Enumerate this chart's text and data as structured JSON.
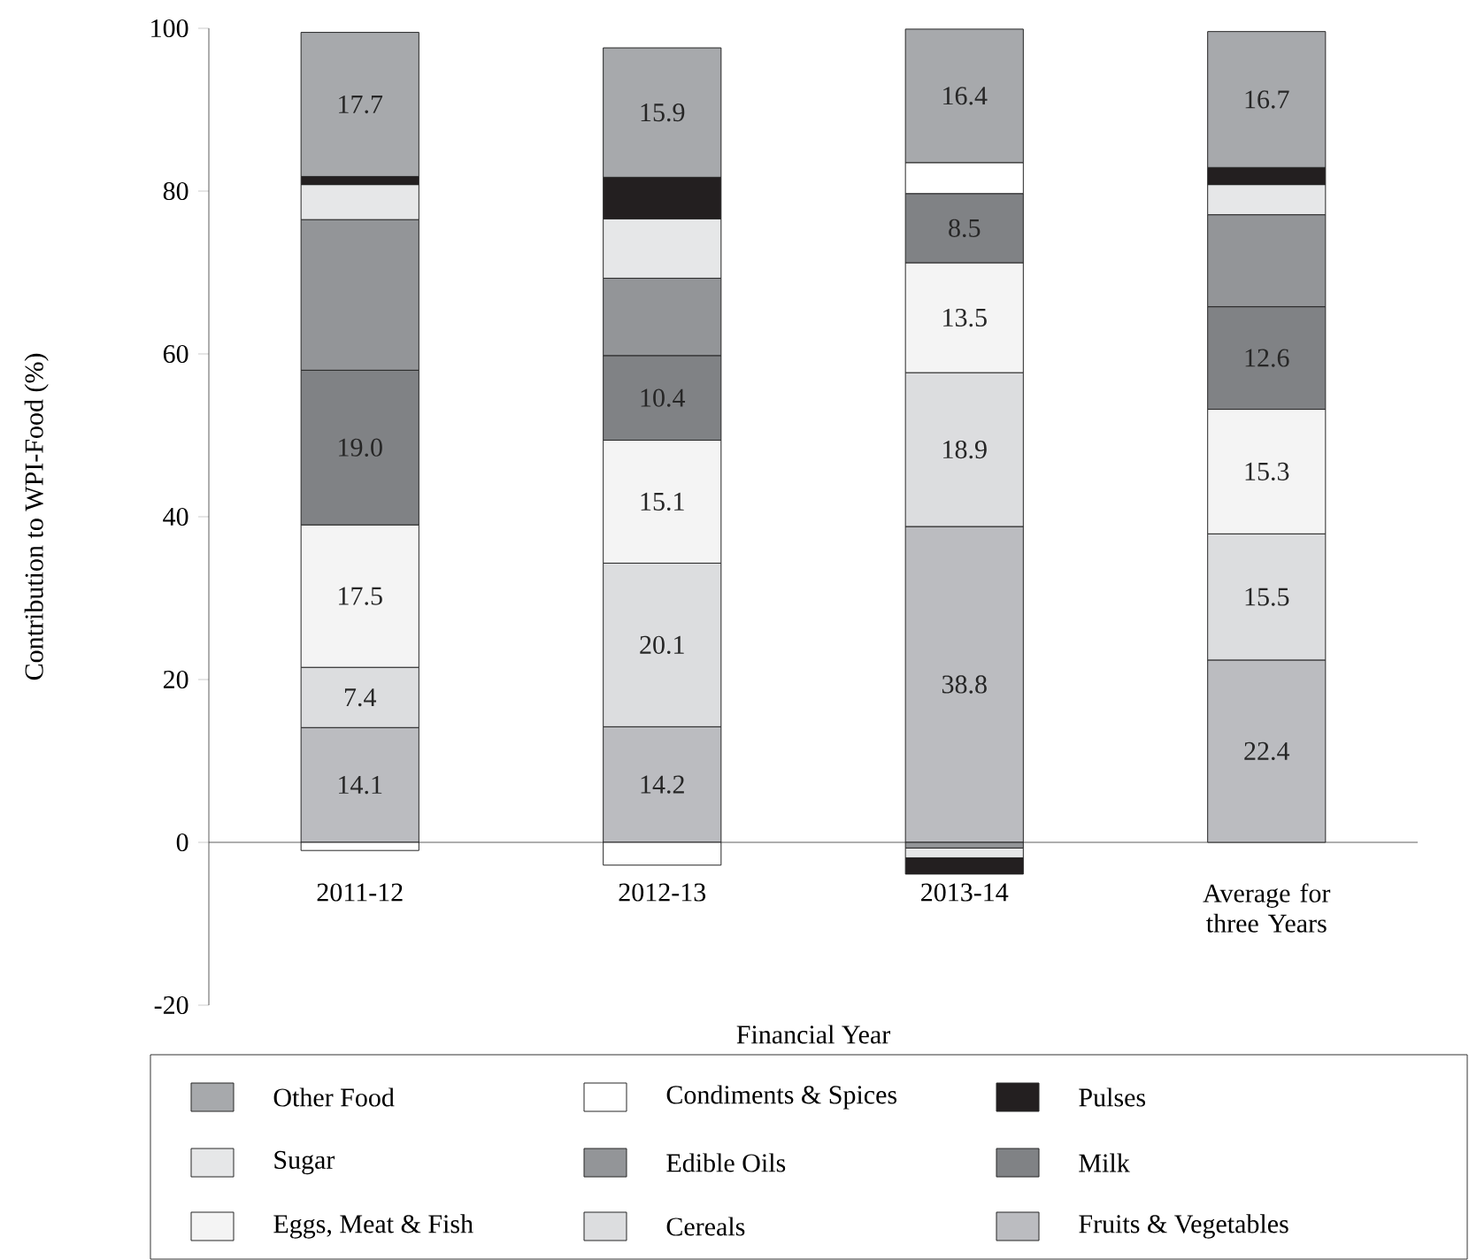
{
  "chart_data": {
    "type": "bar",
    "stacked": true,
    "xlabel": "Financial Year",
    "ylabel": "Contribution to WPI-Food (%)",
    "categories": [
      "2011-12",
      "2012-13",
      "2013-14",
      "Average for three Years"
    ],
    "ylim": [
      -20,
      100
    ],
    "yticks": [
      -20,
      0,
      20,
      40,
      60,
      80,
      100
    ],
    "grid": false,
    "legend": "bottom",
    "series": [
      {
        "name": "Fruits & Vegetables",
        "color": "#bbbcc0",
        "values": [
          14.1,
          14.2,
          38.8,
          22.4
        ],
        "value_labels": [
          "14.1",
          "14.2",
          "38.8",
          "22.4"
        ]
      },
      {
        "name": "Cereals",
        "color": "#dcdddf",
        "values": [
          7.4,
          20.1,
          18.9,
          15.5
        ],
        "value_labels": [
          "7.4",
          "20.1",
          "18.9",
          "15.5"
        ]
      },
      {
        "name": "Eggs, Meat & Fish",
        "color": "#f4f4f4",
        "values": [
          17.5,
          15.1,
          13.5,
          15.3
        ],
        "value_labels": [
          "17.5",
          "15.1",
          "13.5",
          "15.3"
        ]
      },
      {
        "name": "Milk",
        "color": "#808285",
        "values": [
          19.0,
          10.4,
          8.5,
          12.6
        ],
        "value_labels": [
          "19.0",
          "10.4",
          "8.5",
          "12.6"
        ]
      },
      {
        "name": "Edible Oils",
        "color": "#939598",
        "values": [
          18.5,
          9.5,
          -0.7,
          11.3
        ]
      },
      {
        "name": "Sugar",
        "color": "#e6e7e8",
        "values": [
          4.3,
          7.3,
          -1.2,
          3.7
        ]
      },
      {
        "name": "Condiments & Spices",
        "color": "#ffffff",
        "values": [
          -1.0,
          -2.8,
          3.8,
          null
        ]
      },
      {
        "name": "Pulses",
        "color": "#231f20",
        "values": [
          1.0,
          5.1,
          -2.0,
          2.1
        ]
      },
      {
        "name": "Other Food",
        "color": "#a7a9ac",
        "values": [
          17.7,
          15.9,
          16.4,
          16.7
        ],
        "value_labels": [
          "17.7",
          "15.9",
          "16.4",
          "16.7"
        ]
      }
    ]
  }
}
